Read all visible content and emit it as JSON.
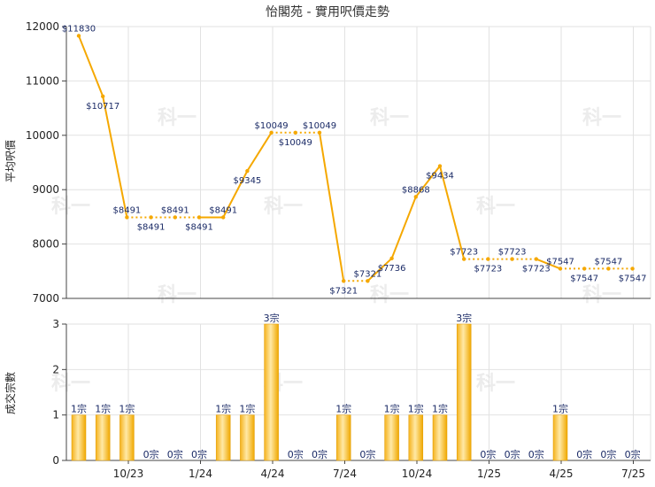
{
  "chart_data": [
    {
      "type": "line",
      "title": "怡閣苑 - 實用呎價走勢",
      "ylabel": "平均呎價",
      "ylim": [
        7000,
        12000
      ],
      "yticks": [
        7000,
        8000,
        9000,
        10000,
        11000,
        12000
      ],
      "grid": true,
      "color": "#f5a800",
      "series": [
        {
          "values": [
            11830,
            10717,
            8491,
            8491,
            8491,
            8491,
            8491,
            9345,
            10049,
            10049,
            10049,
            7321,
            7321,
            7736,
            8868,
            9434,
            7723,
            7723,
            7723,
            7723,
            7547,
            7547,
            7547,
            7547
          ],
          "labels": [
            "$11830",
            "$10717",
            "$8491",
            "$8491",
            "$8491",
            "$8491",
            "$8491",
            "$9345",
            "$10049",
            "$10049",
            "$10049",
            "$7321",
            "$7321",
            "$7736",
            "$8868",
            "$9434",
            "$7723",
            "$7723",
            "$7723",
            "$7723",
            "$7547",
            "$7547",
            "$7547",
            "$7547"
          ],
          "has_deal": [
            true,
            true,
            true,
            false,
            false,
            false,
            true,
            true,
            true,
            false,
            false,
            true,
            false,
            true,
            true,
            true,
            true,
            false,
            false,
            false,
            true,
            false,
            false,
            false
          ]
        }
      ]
    },
    {
      "type": "bar",
      "ylabel": "成交宗數",
      "ylim": [
        0,
        3
      ],
      "yticks": [
        0,
        1,
        2,
        3
      ],
      "grid": true,
      "x_tick_labels": [
        "10/23",
        "1/24",
        "4/24",
        "7/24",
        "10/24",
        "1/25",
        "4/25",
        "7/25"
      ],
      "values": [
        1,
        1,
        1,
        0,
        0,
        0,
        1,
        1,
        3,
        0,
        0,
        1,
        0,
        1,
        1,
        1,
        3,
        0,
        0,
        0,
        1,
        0,
        0,
        0
      ],
      "labels": [
        "1宗",
        "1宗",
        "1宗",
        "0宗",
        "0宗",
        "0宗",
        "1宗",
        "1宗",
        "3宗",
        "0宗",
        "0宗",
        "1宗",
        "0宗",
        "1宗",
        "1宗",
        "1宗",
        "3宗",
        "0宗",
        "0宗",
        "0宗",
        "1宗",
        "0宗",
        "0宗",
        "0宗"
      ]
    }
  ],
  "watermark": "科一"
}
